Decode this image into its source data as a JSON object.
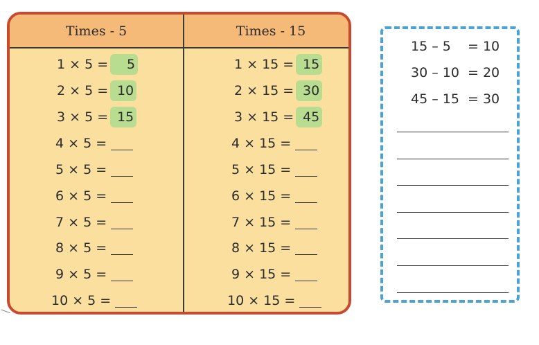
{
  "times5": {
    "header": "Times - 5",
    "rows": [
      {
        "expr": "1 × 5 =",
        "answer": "5"
      },
      {
        "expr": "2 × 5 =",
        "answer": "10"
      },
      {
        "expr": "3 × 5 =",
        "answer": "15"
      },
      {
        "expr": "4 × 5 =",
        "answer": ""
      },
      {
        "expr": "5 × 5 =",
        "answer": ""
      },
      {
        "expr": "6 × 5 =",
        "answer": ""
      },
      {
        "expr": "7 × 5 =",
        "answer": ""
      },
      {
        "expr": "8 × 5 =",
        "answer": ""
      },
      {
        "expr": "9 × 5 =",
        "answer": ""
      },
      {
        "expr": "10 × 5 =",
        "answer": ""
      }
    ]
  },
  "times15": {
    "header": "Times - 15",
    "rows": [
      {
        "expr": "1 × 15 =",
        "answer": "15"
      },
      {
        "expr": "2 × 15 =",
        "answer": "30"
      },
      {
        "expr": "3 × 15 =",
        "answer": "45"
      },
      {
        "expr": "4 × 15 =",
        "answer": ""
      },
      {
        "expr": "5 × 15 =",
        "answer": ""
      },
      {
        "expr": "6 × 15 =",
        "answer": ""
      },
      {
        "expr": "7 × 15 =",
        "answer": ""
      },
      {
        "expr": "8 × 15 =",
        "answer": ""
      },
      {
        "expr": "9 × 15 =",
        "answer": ""
      },
      {
        "expr": "10 × 15 =",
        "answer": ""
      }
    ]
  },
  "differences": [
    {
      "lhs": "15 – 5",
      "rhs": "= 10"
    },
    {
      "lhs": "30 – 10",
      "rhs": "= 20"
    },
    {
      "lhs": "45 – 15",
      "rhs": "= 30"
    }
  ],
  "blank_lines_count": 7,
  "colors": {
    "table_border": "#c9492e",
    "table_fill": "#fadf9e",
    "header_fill": "#f5b978",
    "answer_highlight": "#b8dd91",
    "dashed_border": "#4aa2d6"
  }
}
